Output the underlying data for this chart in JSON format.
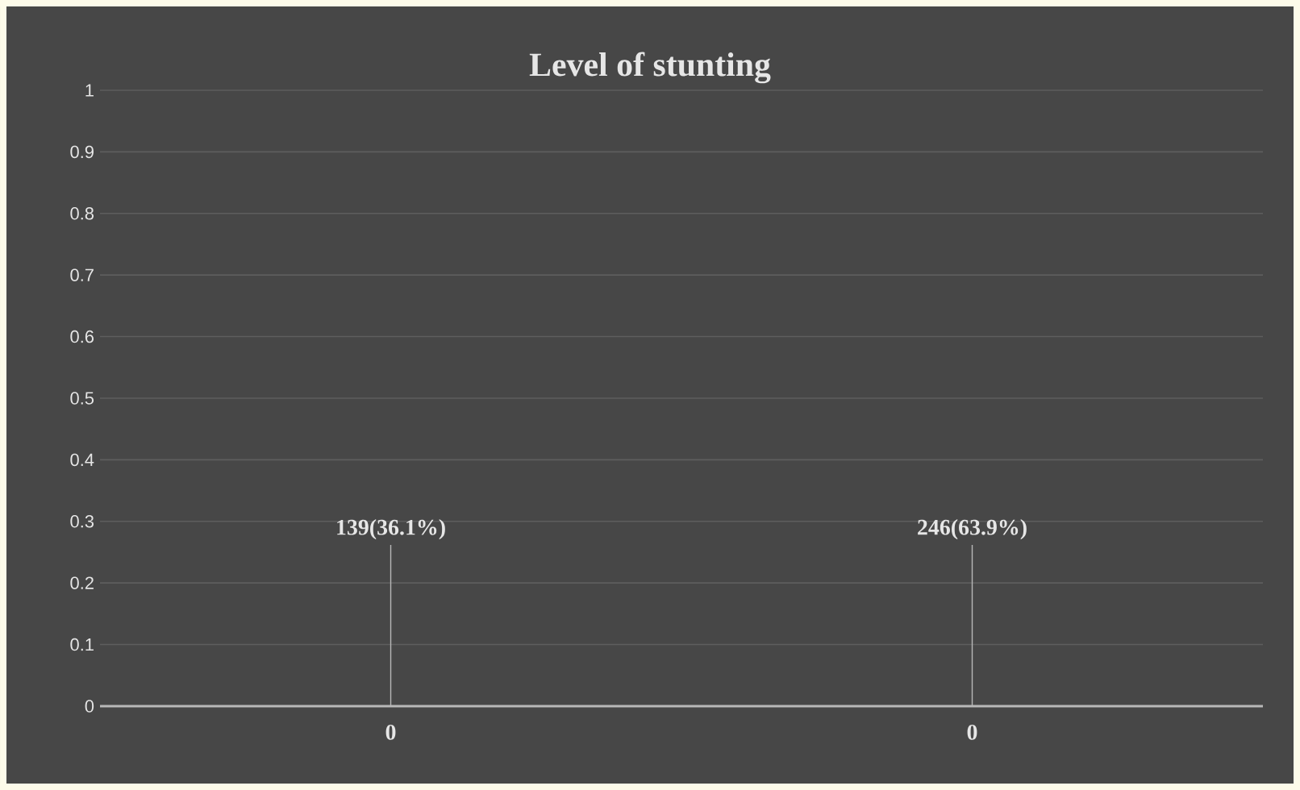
{
  "chart_data": {
    "type": "bar",
    "title": "Level of stunting",
    "categories": [
      "0",
      "0"
    ],
    "values": [
      0,
      0
    ],
    "annotations": [
      {
        "text": "139(36.1%)",
        "x": "0",
        "y": 0
      },
      {
        "text": "246(63.9%)",
        "y": 0
      }
    ],
    "ylim": [
      0,
      1
    ],
    "yticks": [
      0,
      0.1,
      0.2,
      0.3,
      0.4,
      0.5,
      0.6,
      0.7,
      0.8,
      0.9,
      1
    ],
    "grid": "y"
  }
}
